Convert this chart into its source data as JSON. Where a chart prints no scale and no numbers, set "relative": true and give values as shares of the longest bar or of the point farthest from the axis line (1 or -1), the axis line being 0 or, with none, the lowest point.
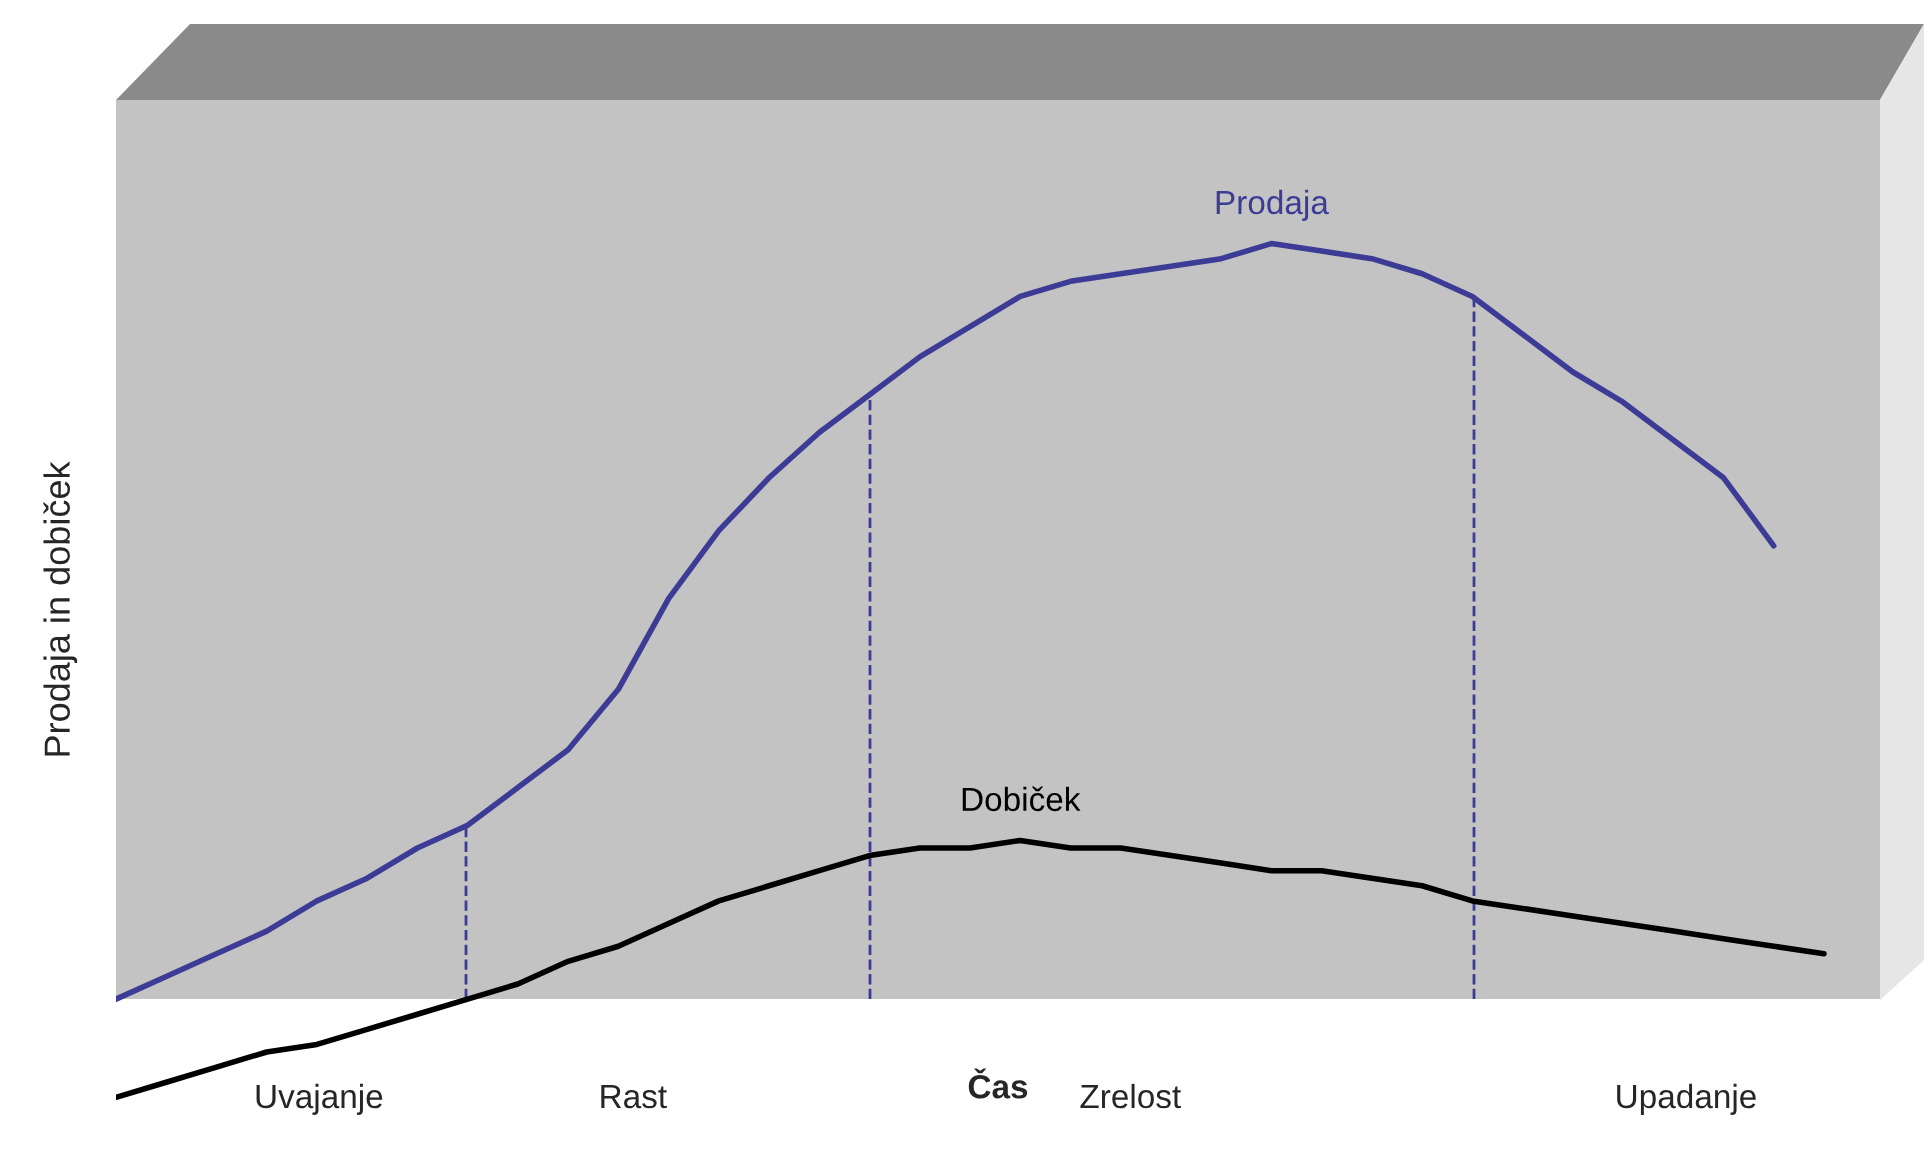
{
  "chart_data": {
    "type": "line",
    "relative": true,
    "xlabel": "Čas",
    "ylabel": "Prodaja in dobiček",
    "categories": [
      null,
      null,
      null,
      null,
      null,
      null,
      null,
      null,
      null,
      null,
      null,
      null,
      null,
      null,
      null,
      null,
      null,
      null,
      null,
      null,
      null,
      null,
      null,
      null,
      null,
      null,
      null,
      null,
      null,
      null,
      null,
      null,
      null,
      null,
      null
    ],
    "series": [
      {
        "name": "Prodaja",
        "color": "#3c3c96",
        "values": [
          0,
          0.03,
          0.06,
          0.09,
          0.13,
          0.16,
          0.2,
          0.23,
          0.28,
          0.33,
          0.41,
          0.53,
          0.62,
          0.69,
          0.75,
          0.8,
          0.85,
          0.89,
          0.93,
          0.95,
          0.96,
          0.97,
          0.98,
          1,
          0.99,
          0.98,
          0.96,
          0.93,
          0.88,
          0.83,
          0.79,
          0.74,
          0.69,
          0.6,
          null
        ]
      },
      {
        "name": "Dobiček",
        "color": "#000000",
        "values": [
          -0.13,
          -0.11,
          -0.09,
          -0.07,
          -0.06,
          -0.04,
          -0.02,
          0,
          0.02,
          0.05,
          0.07,
          0.1,
          0.13,
          0.15,
          0.17,
          0.19,
          0.2,
          0.2,
          0.21,
          0.2,
          0.2,
          0.19,
          0.18,
          0.17,
          0.17,
          0.16,
          0.15,
          0.13,
          0.12,
          0.11,
          0.1,
          0.09,
          0.08,
          0.07,
          0.06
        ]
      }
    ],
    "annotations": [
      "Uvajanje",
      "Rast",
      "Zrelost",
      "Upadanje"
    ],
    "marker": "none",
    "line_style": "solid"
  }
}
